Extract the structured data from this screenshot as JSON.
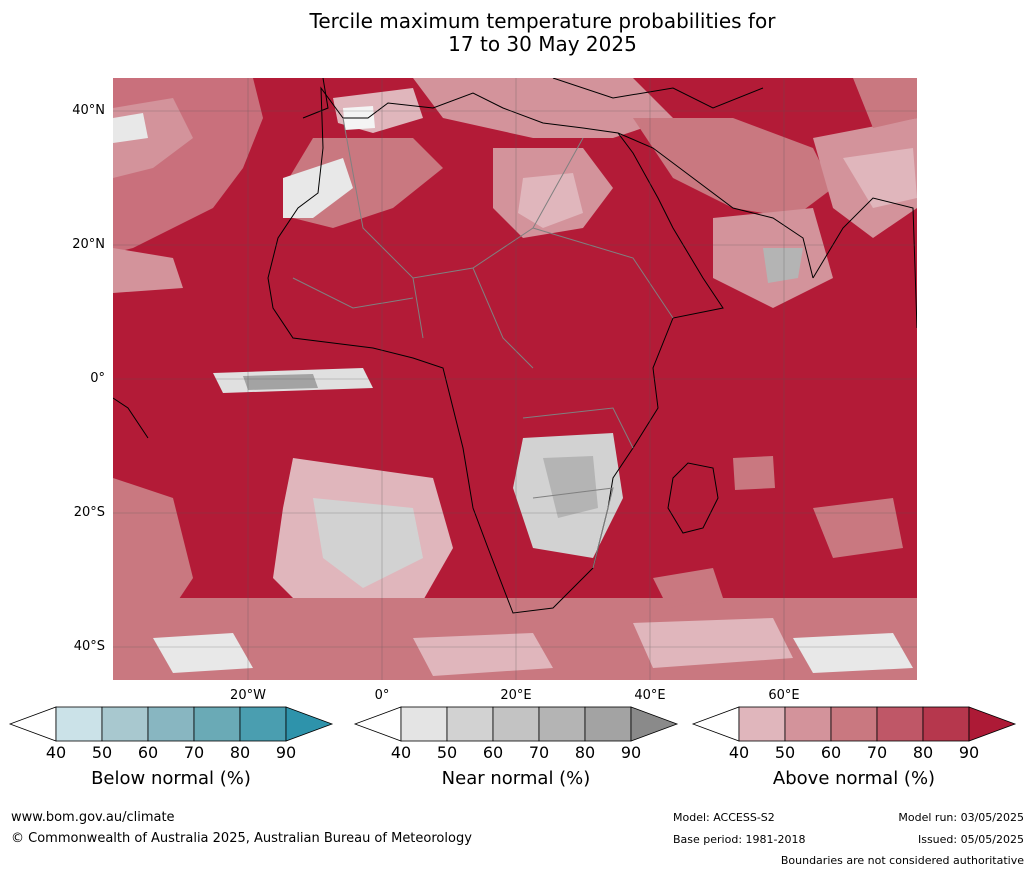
{
  "title": {
    "line1": "Tercile maximum temperature probabilities for",
    "line2": "17 to 30 May 2025"
  },
  "map": {
    "lat_labels": [
      "40°N",
      "20°N",
      "0°",
      "20°S",
      "40°S"
    ],
    "lon_labels": [
      "20°W",
      "0°",
      "20°E",
      "40°E",
      "60°E"
    ],
    "ocean_color": "#b31b37",
    "land_color": "#b31b37",
    "border_color": "#808080",
    "coast_color": "#000000"
  },
  "colorbars": [
    {
      "label": "Below normal (%)",
      "ticks": [
        "40",
        "50",
        "60",
        "70",
        "80",
        "90"
      ],
      "colors": [
        "#ffffff",
        "#cbe2e8",
        "#a8c8cf",
        "#88b6c1",
        "#6aaab6",
        "#4a9eb0",
        "#2e93ab"
      ]
    },
    {
      "label": "Near normal (%)",
      "ticks": [
        "40",
        "50",
        "60",
        "70",
        "80",
        "90"
      ],
      "colors": [
        "#ffffff",
        "#e4e4e4",
        "#d2d2d2",
        "#c3c3c3",
        "#b4b4b4",
        "#a3a3a3",
        "#8a8a8a"
      ]
    },
    {
      "label": "Above normal (%)",
      "ticks": [
        "40",
        "50",
        "60",
        "70",
        "80",
        "90"
      ],
      "colors": [
        "#ffffff",
        "#e0b6bc",
        "#d3939b",
        "#c97880",
        "#bf5767",
        "#b6374d",
        "#ad1a36"
      ]
    }
  ],
  "footer": {
    "website": "www.bom.gov.au/climate",
    "copyright": "© Commonwealth of Australia 2025, Australian Bureau of Meteorology",
    "model": "Model: ACCESS-S2",
    "base_period": "Base period: 1981-2018",
    "model_run": "Model run: 03/05/2025",
    "issued": "Issued: 05/05/2025",
    "disclaimer": "Boundaries are not considered authoritative"
  }
}
